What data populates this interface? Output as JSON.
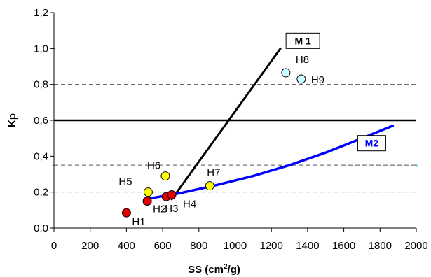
{
  "chart_data": {
    "type": "scatter",
    "xlabel": "SS (cm",
    "xlabel_sup": "2",
    "xlabel_end": "/g)",
    "ylabel": "Kp",
    "xlim": [
      0,
      2000
    ],
    "ylim": [
      0.0,
      1.2
    ],
    "x_ticks": [
      "0",
      "200",
      "400",
      "600",
      "800",
      "1000",
      "1200",
      "1400",
      "1600",
      "1800",
      "2000"
    ],
    "y_ticks": [
      "0,0",
      "0,2",
      "0,4",
      "0,6",
      "0,8",
      "1,0",
      "1,2"
    ],
    "reference_lines": [
      {
        "y": 0.6,
        "style": "solid"
      },
      {
        "y": 0.8,
        "style": "dashed"
      },
      {
        "y": 0.35,
        "style": "dashed"
      },
      {
        "y": 0.2,
        "style": "dashed"
      }
    ],
    "points": [
      {
        "label": "H1",
        "x": 400,
        "y": 0.085,
        "color": "#e00000"
      },
      {
        "label": "H2",
        "x": 515,
        "y": 0.15,
        "color": "#e00000"
      },
      {
        "label": "H3",
        "x": 620,
        "y": 0.175,
        "color": "#e00000"
      },
      {
        "label": "H4",
        "x": 650,
        "y": 0.185,
        "color": "#e00000"
      },
      {
        "label": "H5",
        "x": 520,
        "y": 0.2,
        "color": "#ffff00"
      },
      {
        "label": "H6",
        "x": 615,
        "y": 0.29,
        "color": "#ffff00"
      },
      {
        "label": "H7",
        "x": 860,
        "y": 0.235,
        "color": "#ffff00"
      },
      {
        "label": "H8",
        "x": 1280,
        "y": 0.865,
        "color": "#ccffff"
      },
      {
        "label": "H9",
        "x": 1365,
        "y": 0.83,
        "color": "#ccffff"
      }
    ],
    "series": [
      {
        "name": "M 1",
        "color": "#000000",
        "x": [
          650,
          1250
        ],
        "y": [
          0.16,
          1.0
        ]
      },
      {
        "name": "M2",
        "color": "#0000ff",
        "x": [
          500,
          700,
          900,
          1100,
          1300,
          1500,
          1700,
          1870
        ],
        "y": [
          0.16,
          0.195,
          0.24,
          0.29,
          0.35,
          0.42,
          0.5,
          0.57
        ]
      }
    ]
  }
}
